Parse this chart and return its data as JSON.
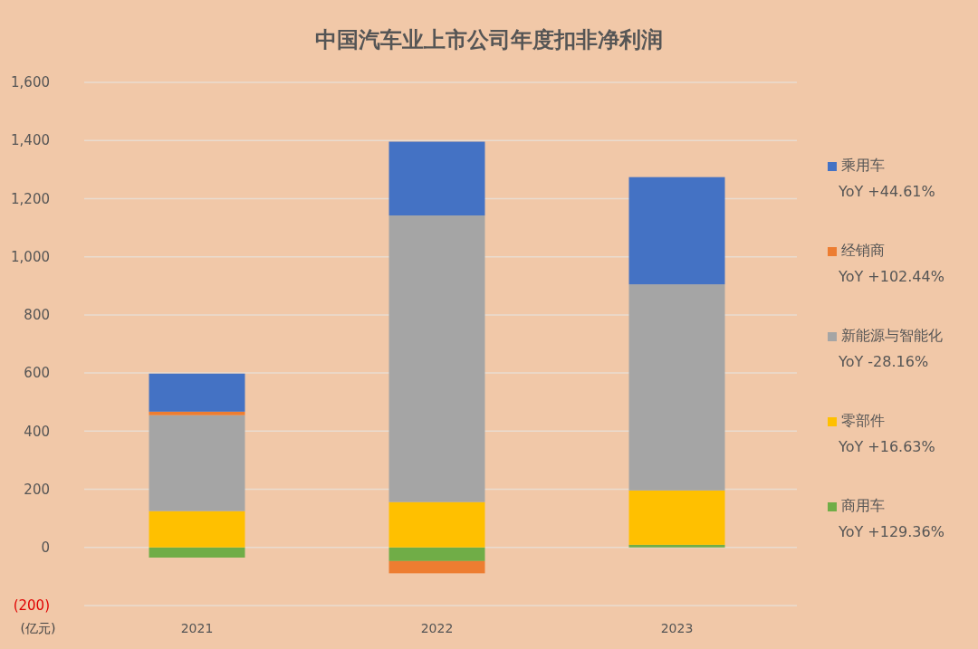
{
  "chart_data": {
    "type": "bar",
    "title": "中国汽车业上市公司年度扣非净利润",
    "ylabel": "(亿元)",
    "categories": [
      "2021",
      "2022",
      "2023"
    ],
    "stacked": true,
    "series": [
      {
        "name": "商用车",
        "color": "#70ad47",
        "values": [
          -35,
          -47,
          9
        ]
      },
      {
        "name": "零部件",
        "color": "#ffc000",
        "values": [
          125,
          156,
          187
        ]
      },
      {
        "name": "新能源与智能化",
        "color": "#a5a5a5",
        "values": [
          330,
          986,
          709
        ]
      },
      {
        "name": "经销商",
        "color": "#ed7d31",
        "values": [
          12,
          -42,
          0
        ]
      },
      {
        "name": "乘用车",
        "color": "#4472c4",
        "values": [
          131,
          254,
          369
        ]
      }
    ],
    "ylim": [
      -200,
      1600
    ],
    "yticks": [
      {
        "value": -200,
        "label": "(200)"
      },
      0,
      {
        "value": 200,
        "label": "200"
      },
      {
        "value": 400,
        "label": "400"
      },
      {
        "value": 600,
        "label": "600"
      },
      {
        "value": 800,
        "label": "800"
      },
      {
        "value": 1000,
        "label": "1,000"
      },
      {
        "value": 1200,
        "label": "1,200"
      },
      {
        "value": 1400,
        "label": "1,400"
      },
      {
        "value": 1600,
        "label": "1,600"
      }
    ],
    "grid": "y",
    "legend": "right",
    "annotations": [
      "YoY +44.61%",
      "YoY +102.44%",
      "YoY -28.16%",
      "YoY +16.63%",
      "YoY +129.36%"
    ]
  }
}
